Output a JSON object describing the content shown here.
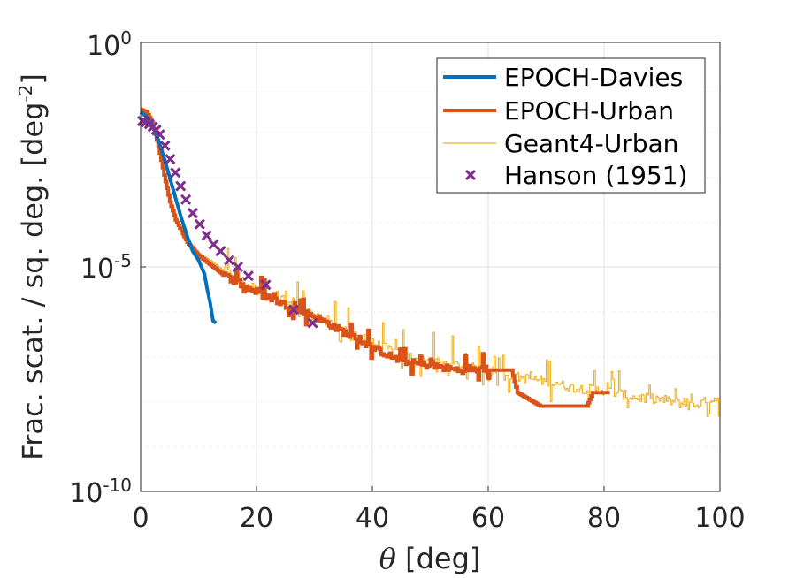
{
  "chart_data": {
    "type": "line",
    "title": "",
    "xlabel": "[deg]",
    "xlabel_symbol": "θ",
    "ylabel": "Frac. scat. / sq. deg. [deg",
    "ylabel_exp": "-2",
    "ylabel_close": "]",
    "xlim": [
      0,
      100
    ],
    "ylim_log10": [
      -10,
      0
    ],
    "yscale": "log",
    "grid": true,
    "legend_position": "top-right",
    "xticks": [
      0,
      20,
      40,
      60,
      80,
      100
    ],
    "xtick_labels": [
      "0",
      "20",
      "40",
      "60",
      "80",
      "100"
    ],
    "yticks_log10": [
      0,
      -5,
      -10
    ],
    "ytick_labels": [
      {
        "base": "10",
        "exp": "0"
      },
      {
        "base": "10",
        "exp": "-5"
      },
      {
        "base": "10",
        "exp": "-10"
      }
    ],
    "series": [
      {
        "name": "EPOCH-Davies",
        "color": "#0072bd",
        "style": "line",
        "x": [
          0,
          1,
          2,
          3,
          4,
          5,
          6,
          7,
          8,
          9,
          10,
          11,
          11.5,
          12,
          12.5,
          13
        ],
        "log10y": [
          -1.55,
          -1.65,
          -1.85,
          -2.15,
          -2.55,
          -3.0,
          -3.45,
          -3.9,
          -4.3,
          -4.65,
          -4.85,
          -5.15,
          -5.5,
          -5.8,
          -6.2,
          -6.25
        ]
      },
      {
        "name": "EPOCH-Urban",
        "color": "#d95319",
        "style": "thick-step",
        "x": [
          0,
          1,
          2,
          3,
          4,
          5,
          6,
          7,
          8,
          9,
          10,
          12,
          14,
          16,
          18,
          20,
          25,
          30,
          35,
          40,
          45,
          50,
          55,
          60,
          64,
          65,
          69,
          77,
          78,
          81
        ],
        "log10y": [
          -1.5,
          -1.55,
          -1.8,
          -2.3,
          -2.95,
          -3.55,
          -3.95,
          -4.2,
          -4.45,
          -4.6,
          -4.75,
          -4.95,
          -5.15,
          -5.3,
          -5.45,
          -5.55,
          -5.85,
          -6.1,
          -6.45,
          -6.8,
          -7.1,
          -7.2,
          -7.3,
          -7.3,
          -7.3,
          -7.8,
          -8.1,
          -8.1,
          -7.8,
          -7.8
        ]
      },
      {
        "name": "Geant4-Urban",
        "color": "#edb120",
        "style": "thin-line",
        "x": [
          0,
          1,
          2,
          3,
          4,
          5,
          6,
          7,
          8,
          9,
          10,
          12,
          14,
          16,
          18,
          20,
          25,
          30,
          35,
          40,
          45,
          50,
          55,
          60,
          65,
          70,
          75,
          80,
          85,
          90,
          95,
          100
        ],
        "log10y": [
          -1.45,
          -1.6,
          -1.85,
          -2.35,
          -2.9,
          -3.4,
          -3.9,
          -4.25,
          -4.45,
          -4.55,
          -4.7,
          -4.85,
          -5.05,
          -5.2,
          -5.35,
          -5.5,
          -5.8,
          -6.1,
          -6.4,
          -6.7,
          -6.95,
          -7.1,
          -7.2,
          -7.3,
          -7.45,
          -7.55,
          -7.7,
          -7.75,
          -7.9,
          -7.95,
          -8.1,
          -7.9
        ]
      },
      {
        "name": "Hanson (1951)",
        "color": "#7e2f8e",
        "style": "marker-x",
        "x": [
          0.3,
          0.9,
          1.5,
          2.1,
          2.7,
          3.3,
          4.2,
          5.1,
          6.0,
          6.9,
          7.8,
          9.0,
          10.2,
          11.4,
          12.6,
          13.8,
          15.3,
          16.8,
          18.6,
          21.6,
          26.4,
          29.7
        ],
        "log10y": [
          -1.75,
          -1.78,
          -1.82,
          -1.88,
          -1.95,
          -2.05,
          -2.3,
          -2.6,
          -2.9,
          -3.2,
          -3.5,
          -3.8,
          -4.05,
          -4.3,
          -4.5,
          -4.65,
          -4.85,
          -5.0,
          -5.2,
          -5.4,
          -5.95,
          -6.25
        ]
      }
    ]
  }
}
